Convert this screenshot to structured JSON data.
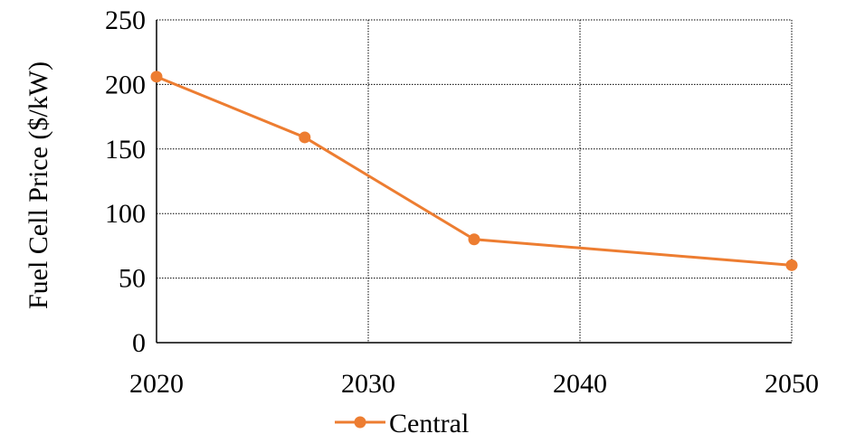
{
  "chart_data": {
    "type": "line",
    "title": "",
    "xlabel": "",
    "ylabel": "Fuel Cell Price ($/kW)",
    "xlim": [
      2020,
      2050
    ],
    "ylim": [
      0,
      250
    ],
    "x_ticks": [
      2020,
      2030,
      2040,
      2050
    ],
    "y_ticks": [
      0,
      50,
      100,
      150,
      200,
      250
    ],
    "grid": true,
    "legend_position": "bottom",
    "series": [
      {
        "name": "Central",
        "color": "#ED7D31",
        "marker": "circle",
        "x": [
          2020,
          2027,
          2035,
          2050
        ],
        "y": [
          206,
          159,
          80,
          60
        ]
      }
    ]
  }
}
